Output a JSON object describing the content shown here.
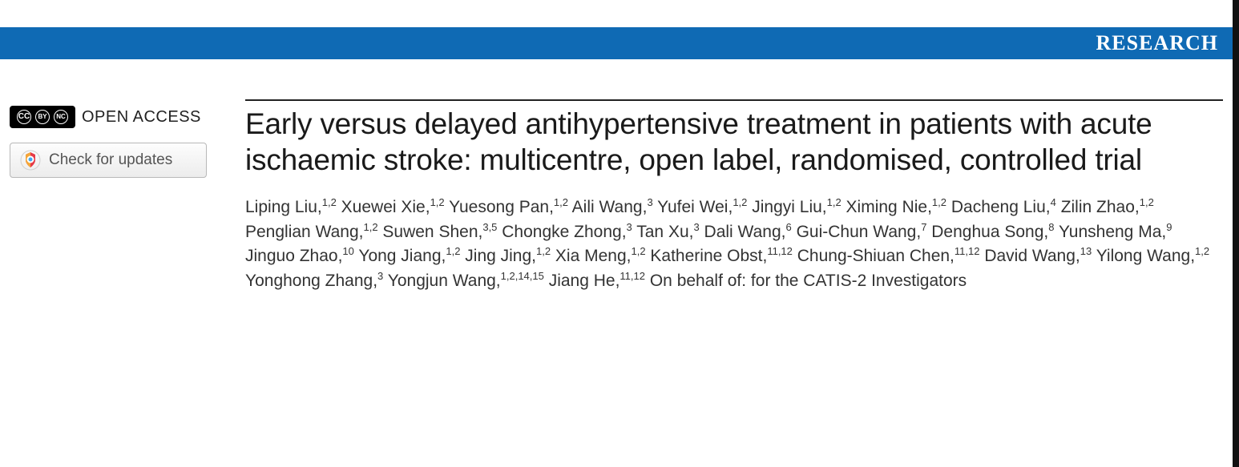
{
  "banner": {
    "label": "RESEARCH"
  },
  "sidebar": {
    "open_access_label": "OPEN ACCESS",
    "check_updates_label": "Check for updates"
  },
  "article": {
    "title": "Early versus delayed antihypertensive treatment in patients with acute ischaemic stroke: multicentre, open label, randomised, controlled trial",
    "authors": [
      {
        "name": "Liping Liu",
        "aff": "1,2"
      },
      {
        "name": "Xuewei Xie",
        "aff": "1,2"
      },
      {
        "name": "Yuesong Pan",
        "aff": "1,2"
      },
      {
        "name": "Aili Wang",
        "aff": "3"
      },
      {
        "name": "Yufei Wei",
        "aff": "1,2"
      },
      {
        "name": "Jingyi Liu",
        "aff": "1,2"
      },
      {
        "name": "Ximing Nie",
        "aff": "1,2"
      },
      {
        "name": "Dacheng Liu",
        "aff": "4"
      },
      {
        "name": "Zilin Zhao",
        "aff": "1,2"
      },
      {
        "name": "Penglian Wang",
        "aff": "1,2"
      },
      {
        "name": "Suwen Shen",
        "aff": "3,5"
      },
      {
        "name": "Chongke Zhong",
        "aff": "3"
      },
      {
        "name": "Tan Xu",
        "aff": "3"
      },
      {
        "name": "Dali Wang",
        "aff": "6"
      },
      {
        "name": "Gui-Chun Wang",
        "aff": "7"
      },
      {
        "name": "Denghua Song",
        "aff": "8"
      },
      {
        "name": "Yunsheng Ma",
        "aff": "9"
      },
      {
        "name": "Jinguo Zhao",
        "aff": "10"
      },
      {
        "name": "Yong Jiang",
        "aff": "1,2"
      },
      {
        "name": "Jing Jing",
        "aff": "1,2"
      },
      {
        "name": "Xia Meng",
        "aff": "1,2"
      },
      {
        "name": "Katherine Obst",
        "aff": "11,12"
      },
      {
        "name": "Chung-Shiuan Chen",
        "aff": "11,12"
      },
      {
        "name": "David Wang",
        "aff": "13"
      },
      {
        "name": "Yilong Wang",
        "aff": "1,2"
      },
      {
        "name": "Yonghong Zhang",
        "aff": "3"
      },
      {
        "name": "Yongjun Wang",
        "aff": "1,2,14,15"
      },
      {
        "name": "Jiang He",
        "aff": "11,12"
      }
    ],
    "on_behalf": "On behalf of: for the CATIS-2 Investigators"
  },
  "colors": {
    "banner_bg": "#0f6ab4",
    "banner_text": "#ffffff",
    "rule": "#222222",
    "body_text": "#333333"
  }
}
